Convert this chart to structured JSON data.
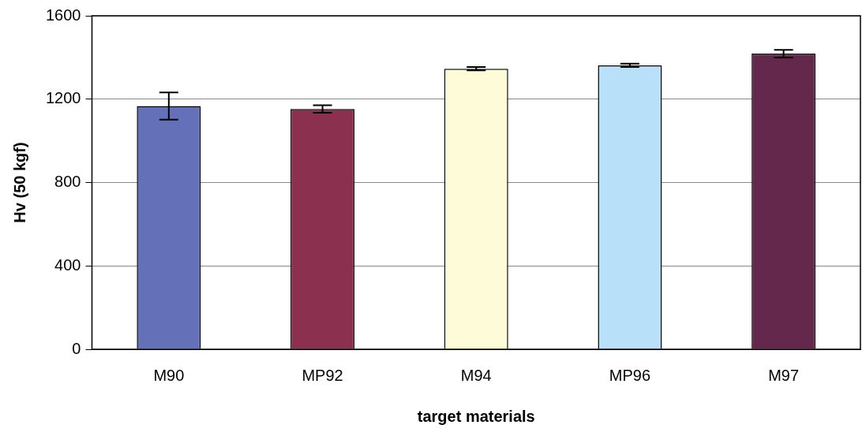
{
  "chart_data": {
    "type": "bar",
    "xlabel": "target materials",
    "ylabel": "Hv (50 kgf)",
    "categories": [
      "M90",
      "MP92",
      "M94",
      "MP96",
      "M97"
    ],
    "values": [
      1167,
      1153,
      1346,
      1362,
      1418
    ],
    "errors": [
      65,
      18,
      8,
      8,
      18
    ],
    "colors": [
      "#6470b8",
      "#8c3050",
      "#fdfbd8",
      "#b8e0f8",
      "#64284c"
    ],
    "ylim": [
      0,
      1600
    ],
    "yticks": [
      0,
      400,
      800,
      1200,
      1600
    ],
    "grid": "y",
    "legend": false
  }
}
